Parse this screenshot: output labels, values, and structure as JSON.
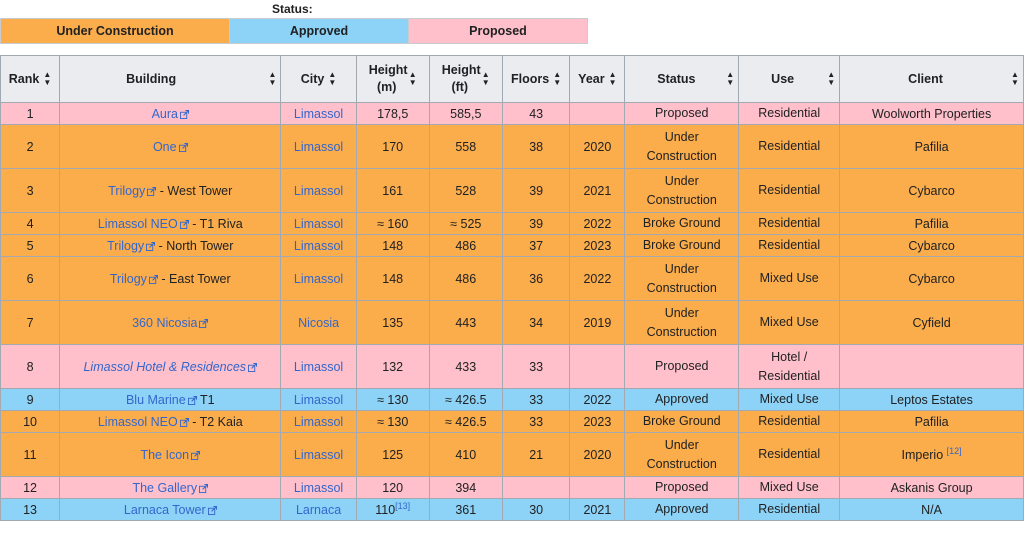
{
  "legend": {
    "title": "Status:",
    "items": [
      {
        "label": "Under Construction",
        "color": "#fbad4b"
      },
      {
        "label": "Approved",
        "color": "#8dd3f7"
      },
      {
        "label": "Proposed",
        "color": "#ffc0cb"
      }
    ]
  },
  "table": {
    "headers": {
      "rank": "Rank",
      "building": "Building",
      "city": "City",
      "height_m": "Height (m)",
      "height_ft": "Height (ft)",
      "floors": "Floors",
      "year": "Year",
      "status": "Status",
      "use": "Use",
      "client": "Client"
    },
    "rows": [
      {
        "rank": "1",
        "building": "Aura",
        "building_suffix": "",
        "city": "Limassol",
        "height_m": "178,5",
        "height_m_ref": "",
        "height_ft": "585,5",
        "floors": "43",
        "year": "",
        "status": "Proposed",
        "use": "Residential",
        "client": "Woolworth Properties",
        "client_ref": ""
      },
      {
        "rank": "2",
        "building": "One",
        "building_suffix": "",
        "city": "Limassol",
        "height_m": "170",
        "height_m_ref": "",
        "height_ft": "558",
        "floors": "38",
        "year": "2020",
        "status": "Under Construction",
        "use": "Residential",
        "client": "Pafilia",
        "client_ref": ""
      },
      {
        "rank": "3",
        "building": "Trilogy",
        "building_suffix": " - West Tower",
        "city": "Limassol",
        "height_m": "161",
        "height_m_ref": "",
        "height_ft": "528",
        "floors": "39",
        "year": "2021",
        "status": "Under Construction",
        "use": "Residential",
        "client": "Cybarco",
        "client_ref": ""
      },
      {
        "rank": "4",
        "building": "Limassol NEO",
        "building_suffix": " - T1 Riva",
        "city": "Limassol",
        "height_m": "≈ 160",
        "height_m_ref": "",
        "height_ft": "≈ 525",
        "floors": "39",
        "year": "2022",
        "status": "Broke Ground",
        "use": "Residential",
        "client": "Pafilia",
        "client_ref": ""
      },
      {
        "rank": "5",
        "building": "Trilogy",
        "building_suffix": " - North Tower",
        "city": "Limassol",
        "height_m": "148",
        "height_m_ref": "",
        "height_ft": "486",
        "floors": "37",
        "year": "2023",
        "status": "Broke Ground",
        "use": "Residential",
        "client": "Cybarco",
        "client_ref": ""
      },
      {
        "rank": "6",
        "building": "Trilogy",
        "building_suffix": " - East Tower",
        "city": "Limassol",
        "height_m": "148",
        "height_m_ref": "",
        "height_ft": "486",
        "floors": "36",
        "year": "2022",
        "status": "Under Construction",
        "use": "Mixed Use",
        "client": "Cybarco",
        "client_ref": ""
      },
      {
        "rank": "7",
        "building": "360 Nicosia",
        "building_suffix": "",
        "city": "Nicosia",
        "height_m": "135",
        "height_m_ref": "",
        "height_ft": "443",
        "floors": "34",
        "year": "2019",
        "status": "Under Construction",
        "use": "Mixed Use",
        "client": "Cyfield",
        "client_ref": ""
      },
      {
        "rank": "8",
        "building": "Limassol Hotel & Residences",
        "building_suffix": "",
        "city": "Limassol",
        "height_m": "132",
        "height_m_ref": "",
        "height_ft": "433",
        "floors": "33",
        "year": "",
        "status": "Proposed",
        "use": "Hotel / Residential",
        "client": "",
        "client_ref": ""
      },
      {
        "rank": "9",
        "building": "Blu Marine",
        "building_suffix": " T1",
        "city": "Limassol",
        "height_m": "≈ 130",
        "height_m_ref": "",
        "height_ft": "≈ 426.5",
        "floors": "33",
        "year": "2022",
        "status": "Approved",
        "use": "Mixed Use",
        "client": "Leptos Estates",
        "client_ref": ""
      },
      {
        "rank": "10",
        "building": "Limassol NEO",
        "building_suffix": " - T2 Kaia",
        "city": "Limassol",
        "height_m": "≈ 130",
        "height_m_ref": "",
        "height_ft": "≈ 426.5",
        "floors": "33",
        "year": "2023",
        "status": "Broke Ground",
        "use": "Residential",
        "client": "Pafilia",
        "client_ref": ""
      },
      {
        "rank": "11",
        "building": "The Icon",
        "building_suffix": "",
        "city": "Limassol",
        "height_m": "125",
        "height_m_ref": "",
        "height_ft": "410",
        "floors": "21",
        "year": "2020",
        "status": "Under Construction",
        "use": "Residential",
        "client": "Imperio",
        "client_ref": "[12]"
      },
      {
        "rank": "12",
        "building": "The Gallery",
        "building_suffix": "",
        "city": "Limassol",
        "height_m": "120",
        "height_m_ref": "",
        "height_ft": "394",
        "floors": "",
        "year": "",
        "status": "Proposed",
        "use": "Mixed Use",
        "client": "Askanis Group",
        "client_ref": ""
      },
      {
        "rank": "13",
        "building": "Larnaca Tower",
        "building_suffix": "",
        "city": "Larnaca",
        "height_m": "110",
        "height_m_ref": "[13]",
        "height_ft": "361",
        "floors": "30",
        "year": "2021",
        "status": "Approved",
        "use": "Residential",
        "client": "N/A",
        "client_ref": ""
      }
    ]
  }
}
